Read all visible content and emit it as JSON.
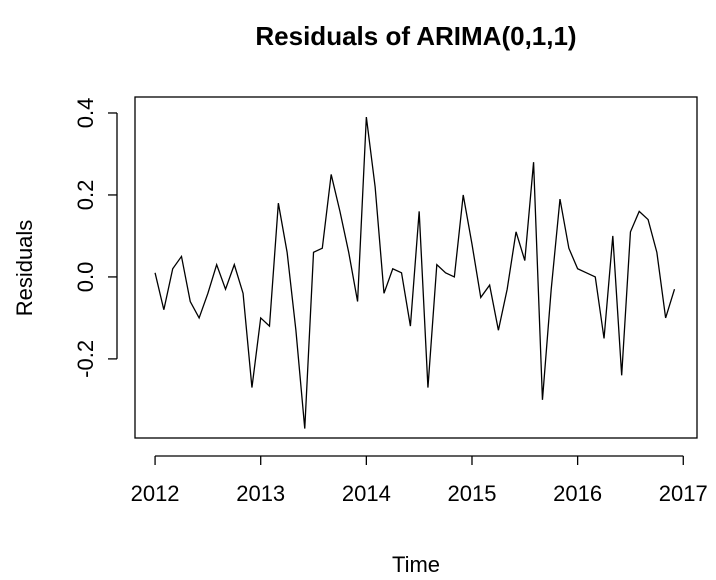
{
  "chart_data": {
    "type": "line",
    "title": "Residuals of ARIMA(0,1,1)",
    "x_label": "Time",
    "y_label": "Residuals",
    "x": [
      2012,
      2012.083,
      2012.167,
      2012.25,
      2012.333,
      2012.417,
      2012.5,
      2012.583,
      2012.667,
      2012.75,
      2012.833,
      2012.917,
      2013,
      2013.083,
      2013.167,
      2013.25,
      2013.333,
      2013.417,
      2013.5,
      2013.583,
      2013.667,
      2013.75,
      2013.833,
      2013.917,
      2014,
      2014.083,
      2014.167,
      2014.25,
      2014.333,
      2014.417,
      2014.5,
      2014.583,
      2014.667,
      2014.75,
      2014.833,
      2014.917,
      2015,
      2015.083,
      2015.167,
      2015.25,
      2015.333,
      2015.417,
      2015.5,
      2015.583,
      2015.667,
      2015.75,
      2015.833,
      2015.917,
      2016,
      2016.083,
      2016.167,
      2016.25,
      2016.333,
      2016.417,
      2016.5,
      2016.583,
      2016.667,
      2016.75,
      2016.833,
      2016.917
    ],
    "series": [
      {
        "name": "Residuals",
        "color": "#000000",
        "values": [
          0.01,
          -0.08,
          0.02,
          0.05,
          -0.06,
          -0.1,
          -0.04,
          0.03,
          -0.03,
          0.03,
          -0.04,
          -0.27,
          -0.1,
          -0.12,
          0.18,
          0.06,
          -0.13,
          -0.37,
          0.06,
          0.07,
          0.25,
          0.16,
          0.06,
          -0.06,
          0.39,
          0.22,
          -0.04,
          0.02,
          0.01,
          -0.12,
          0.16,
          -0.27,
          0.03,
          0.01,
          0.0,
          0.2,
          0.08,
          -0.05,
          -0.02,
          -0.13,
          -0.03,
          0.11,
          0.04,
          0.28,
          -0.3,
          -0.03,
          0.19,
          0.07,
          0.02,
          0.01,
          0.0,
          -0.15,
          0.1,
          -0.24,
          0.11,
          0.16,
          0.14,
          0.06,
          -0.1,
          -0.03
        ]
      }
    ],
    "xlim": [
      2011.81,
      2017.13
    ],
    "xticks": [
      2012,
      2013,
      2014,
      2015,
      2016,
      2017
    ],
    "ylim": [
      -0.393,
      0.439
    ],
    "yticks": [
      {
        "value": -0.2,
        "label": "-0.2"
      },
      {
        "value": 0,
        "label": "0.0"
      },
      {
        "value": 0.2,
        "label": "0.2"
      },
      {
        "value": 0.4,
        "label": "0.4"
      }
    ]
  }
}
